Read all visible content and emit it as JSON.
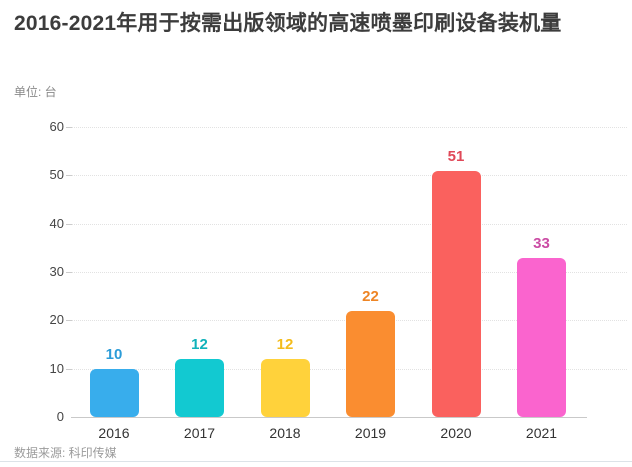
{
  "header": {
    "title": "2016-2021年用于按需出版领域的高速喷墨印刷设备装机量",
    "unit_label": "单位: 台"
  },
  "footer": {
    "source": "数据来源: 科印传媒"
  },
  "chart_data": {
    "type": "bar",
    "title": "2016-2021年用于按需出版领域的高速喷墨印刷设备装机量",
    "unit": "台",
    "categories": [
      "2016",
      "2017",
      "2018",
      "2019",
      "2020",
      "2021"
    ],
    "values": [
      10,
      12,
      12,
      22,
      51,
      33
    ],
    "xlabel": "",
    "ylabel": "",
    "ylim": [
      0,
      60
    ],
    "y_ticks": [
      0,
      10,
      20,
      30,
      40,
      50,
      60
    ],
    "grid": "horizontal-dotted",
    "legend": "none",
    "bar_colors": [
      "#38ADEC",
      "#12C9D1",
      "#FFD23B",
      "#FA8D30",
      "#FA615E",
      "#FA64CE"
    ],
    "value_label_colors": [
      "#2B9CD8",
      "#10B2BA",
      "#F4BC1C",
      "#EE8525",
      "#E04858",
      "#CB4BA4"
    ],
    "source": "数据来源: 科印传媒"
  }
}
